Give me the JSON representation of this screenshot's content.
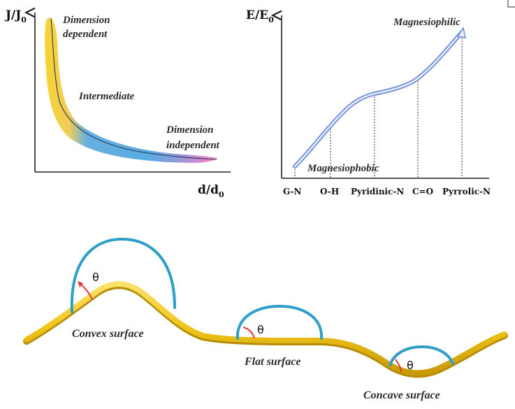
{
  "left_plot": {
    "y_axis_label": "J/J",
    "y_axis_sub": "0",
    "x_axis_label": "d/d",
    "x_axis_sub": "0",
    "labels": {
      "dimension_dependent_1": "Dimension",
      "dimension_dependent_2": "dependent",
      "intermediate": "Intermediate",
      "dimension_independent_1": "Dimension",
      "dimension_independent_2": "independent"
    },
    "colors": {
      "yellow": "#f5d020",
      "blue": "#4aa3df",
      "pink": "#e27bc9"
    }
  },
  "right_plot": {
    "y_axis_label": "E/E",
    "y_axis_sub": "0",
    "top_label": "Magnesiophilic",
    "bottom_label": "Magnesiophobic",
    "x_categories": [
      "G-N",
      "O-H",
      "Pyridinic-N",
      "C=O",
      "Pyrrolic-N"
    ],
    "curve_color": "#6d8fd6"
  },
  "bottom": {
    "theta": "θ",
    "convex_label": "Convex surface",
    "flat_label": "Flat surface",
    "concave_label": "Concave surface",
    "colors": {
      "surface": "#f0c419",
      "droplet": "#2f9fc9",
      "angle": "#e0393e"
    }
  }
}
